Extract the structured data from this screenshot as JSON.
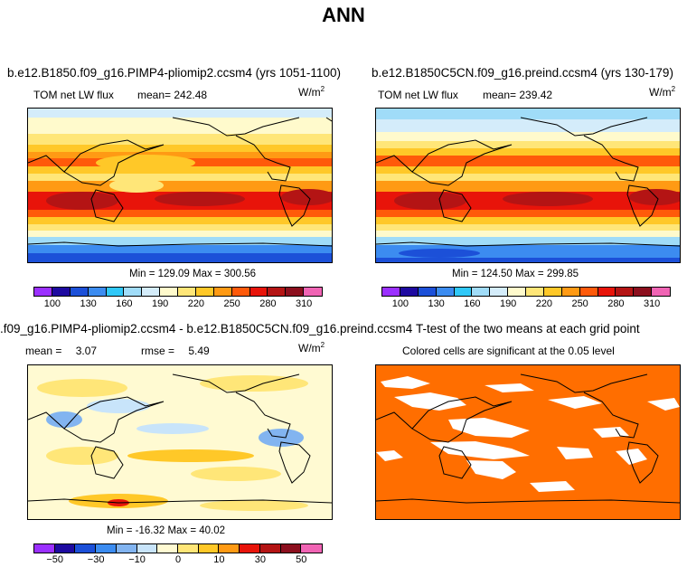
{
  "figure": {
    "title": "ANN"
  },
  "panels": {
    "top_left": {
      "title": "b.e12.B1850.f09_g16.PIMP4-pliomip2.ccsm4 (yrs 1051-1100)",
      "variable": "TOM net LW flux",
      "mean_label": "mean=",
      "mean_value": "242.48",
      "units": "W/m",
      "units_exp": "2",
      "minmax": "Min = 129.09 Max = 300.56"
    },
    "top_right": {
      "title": "b.e12.B1850C5CN.f09_g16.preind.ccsm4 (yrs 130-179)",
      "variable": "TOM net LW flux",
      "mean_label": "mean=",
      "mean_value": "239.42",
      "units": "W/m",
      "units_exp": "2",
      "minmax": "Min = 124.50 Max = 299.85"
    },
    "bottom_left": {
      "title": ".f09_g16.PIMP4-pliomip2.ccsm4 - b.e12.B1850C5CN.f09_g16.preind.ccsm4",
      "mean_label": "mean =",
      "mean_value": "3.07",
      "rmse_label": "rmse =",
      "rmse_value": "5.49",
      "units": "W/m",
      "units_exp": "2",
      "minmax": "Min = -16.32 Max =  40.02"
    },
    "bottom_right": {
      "title": "T-test of the two means at each grid point",
      "subtitle": "Colored cells are significant at the 0.05 level"
    }
  },
  "chart_data": [
    {
      "type": "heatmap",
      "title": "b.e12.B1850.f09_g16.PIMP4-pliomip2.ccsm4 (yrs 1051-1100)",
      "subtitle": "TOM net LW flux",
      "mean": 242.48,
      "min": 129.09,
      "max": 300.56,
      "units": "W/m2",
      "colorbar_levels": [
        100,
        115,
        130,
        145,
        160,
        175,
        190,
        205,
        220,
        235,
        250,
        265,
        280,
        295,
        310
      ],
      "colorbar_tick_labels": [
        "100",
        "130",
        "160",
        "190",
        "220",
        "250",
        "280",
        "310"
      ],
      "colors": [
        "#9b30ff",
        "#1e0aa0",
        "#1c50d8",
        "#3c8cf0",
        "#30c8f8",
        "#a0dcf8",
        "#d4ecfa",
        "#fffacc",
        "#ffe678",
        "#ffc828",
        "#ff9a14",
        "#ff5a0a",
        "#e8140a",
        "#b41414",
        "#8c0f1e",
        "#f064b4"
      ]
    },
    {
      "type": "heatmap",
      "title": "b.e12.B1850C5CN.f09_g16.preind.ccsm4 (yrs 130-179)",
      "subtitle": "TOM net LW flux",
      "mean": 239.42,
      "min": 124.5,
      "max": 299.85,
      "units": "W/m2",
      "colorbar_levels": [
        100,
        115,
        130,
        145,
        160,
        175,
        190,
        205,
        220,
        235,
        250,
        265,
        280,
        295,
        310
      ],
      "colorbar_tick_labels": [
        "100",
        "130",
        "160",
        "190",
        "220",
        "250",
        "280",
        "310"
      ],
      "colors": [
        "#9b30ff",
        "#1e0aa0",
        "#1c50d8",
        "#3c8cf0",
        "#30c8f8",
        "#a0dcf8",
        "#d4ecfa",
        "#fffacc",
        "#ffe678",
        "#ffc828",
        "#ff9a14",
        "#ff5a0a",
        "#e8140a",
        "#b41414",
        "#8c0f1e",
        "#f064b4"
      ]
    },
    {
      "type": "heatmap",
      "title": ".f09_g16.PIMP4-pliomip2.ccsm4 - b.e12.B1850C5CN.f09_g16.preind.ccsm4",
      "mean": 3.07,
      "rmse": 5.49,
      "min": -16.32,
      "max": 40.02,
      "units": "W/m2",
      "colorbar_levels": [
        -50,
        -40,
        -30,
        -20,
        -10,
        -5,
        0,
        5,
        10,
        20,
        30,
        40,
        50
      ],
      "colorbar_tick_labels": [
        "-50",
        "-30",
        "-10",
        "0",
        "10",
        "30",
        "50"
      ],
      "colors": [
        "#9b30ff",
        "#1e0aa0",
        "#1c50d8",
        "#3c8cf0",
        "#82b4f0",
        "#c8e4fa",
        "#fffad2",
        "#ffe678",
        "#ffc828",
        "#ff9a14",
        "#e8140a",
        "#b41414",
        "#8c0f1e",
        "#f064b4"
      ]
    },
    {
      "type": "heatmap",
      "title": "T-test of the two means at each grid point",
      "subtitle": "Colored cells are significant at the 0.05 level",
      "significant_color": "#ff6e00",
      "nonsignificant_color": "#ffffff"
    }
  ]
}
